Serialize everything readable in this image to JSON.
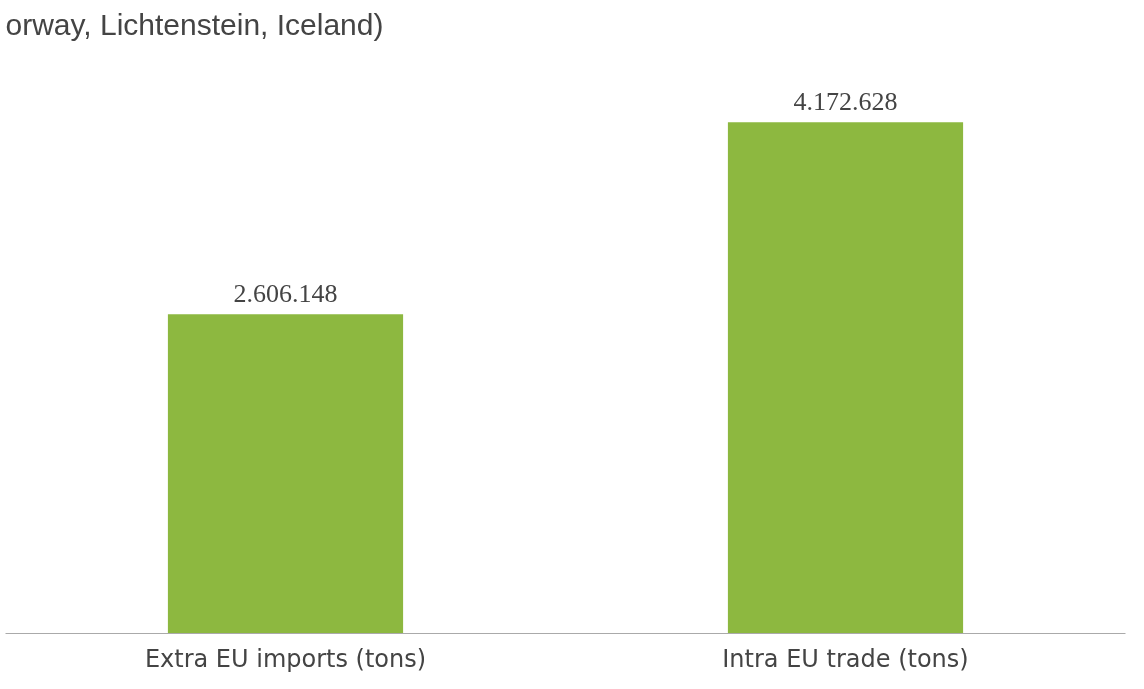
{
  "chart_data": {
    "type": "bar",
    "title": "orway, Lichtenstein, Iceland)",
    "categories": [
      "Extra EU imports (tons)",
      "Intra EU trade (tons)"
    ],
    "values": [
      2606148,
      4172628
    ],
    "value_labels": [
      "2.606.148",
      "4.172.628"
    ],
    "color": "#8db840"
  }
}
